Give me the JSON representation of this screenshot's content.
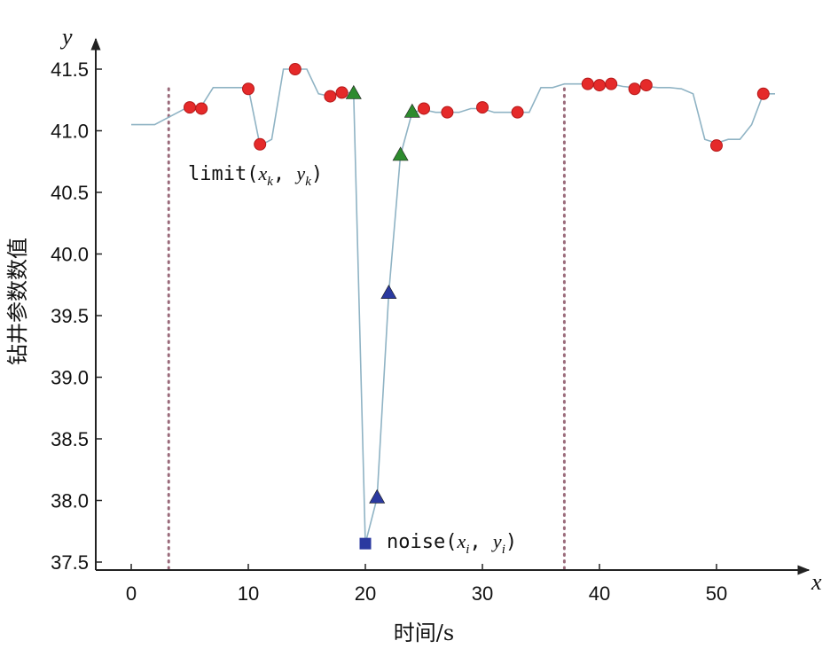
{
  "chart_data": {
    "type": "line",
    "xlabel": "时间/s",
    "ylabel": "钻井参数数值",
    "x_axis_letter": "x",
    "y_axis_letter": "y",
    "xlim": [
      -3,
      58
    ],
    "ylim": [
      37.4,
      41.75
    ],
    "x_ticks": [
      0,
      10,
      20,
      30,
      40,
      50
    ],
    "y_ticks": [
      37.5,
      38.0,
      38.5,
      39.0,
      39.5,
      40.0,
      40.5,
      41.0,
      41.5
    ],
    "y_tick_labels": [
      "37.5",
      "38.0",
      "38.5",
      "39.0",
      "39.5",
      "40.0",
      "40.5",
      "41.0",
      "41.5"
    ],
    "line": {
      "color": "#8fb3c4",
      "x": [
        0,
        2,
        4,
        5,
        6,
        7,
        8,
        9,
        10,
        11,
        12,
        13,
        14,
        15,
        16,
        17,
        18,
        19,
        20,
        21,
        22,
        23,
        24,
        25,
        26,
        27,
        28,
        29,
        30,
        31,
        32,
        33,
        34,
        35,
        36,
        37,
        38,
        39,
        40,
        41,
        42,
        43,
        44,
        45,
        46,
        47,
        48,
        49,
        50,
        51,
        52,
        53,
        54,
        55
      ],
      "y": [
        41.05,
        41.05,
        41.15,
        41.2,
        41.2,
        41.35,
        41.35,
        41.35,
        41.35,
        40.88,
        40.93,
        41.5,
        41.5,
        41.5,
        41.3,
        41.28,
        41.32,
        41.3,
        37.65,
        38.02,
        39.68,
        40.8,
        41.15,
        41.17,
        41.15,
        41.15,
        41.15,
        41.18,
        41.18,
        41.15,
        41.15,
        41.15,
        41.15,
        41.35,
        41.35,
        41.38,
        41.38,
        41.38,
        41.37,
        41.38,
        41.36,
        41.35,
        41.36,
        41.35,
        41.35,
        41.34,
        41.3,
        40.93,
        40.9,
        40.93,
        40.93,
        41.05,
        41.3,
        41.3
      ]
    },
    "series": [
      {
        "marker": "circle",
        "color": "#e52a2a",
        "points": [
          [
            5,
            41.19
          ],
          [
            6,
            41.18
          ],
          [
            10,
            41.34
          ],
          [
            11,
            40.89
          ],
          [
            14,
            41.5
          ],
          [
            17,
            41.28
          ],
          [
            18,
            41.31
          ],
          [
            25,
            41.18
          ],
          [
            27,
            41.15
          ],
          [
            30,
            41.19
          ],
          [
            33,
            41.15
          ],
          [
            39,
            41.38
          ],
          [
            40,
            41.37
          ],
          [
            41,
            41.38
          ],
          [
            43,
            41.34
          ],
          [
            44,
            41.37
          ],
          [
            50,
            40.88
          ],
          [
            54,
            41.3
          ]
        ]
      },
      {
        "marker": "triangle",
        "color": "#2e8b2e",
        "points": [
          [
            19,
            41.3
          ],
          [
            23,
            40.8
          ],
          [
            24,
            41.15
          ]
        ]
      },
      {
        "marker": "triangle",
        "color": "#2b3aa0",
        "points": [
          [
            21,
            38.02
          ],
          [
            22,
            39.68
          ]
        ]
      },
      {
        "marker": "square",
        "color": "#2b3aa0",
        "points": [
          [
            20,
            37.65
          ]
        ]
      }
    ],
    "vlines": [
      {
        "x": 3.2,
        "style": "dotted",
        "color": "#9a6a7a"
      },
      {
        "x": 37,
        "style": "dotted",
        "color": "#9a6a7a"
      }
    ],
    "annotations": {
      "limit": {
        "word": "limit",
        "open": "(",
        "v1": "x",
        "s1": "k",
        "sep": ", ",
        "v2": "y",
        "s2": "k",
        "close": ")"
      },
      "noise": {
        "word": "noise",
        "open": "(",
        "v1": "x",
        "s1": "i",
        "sep": ", ",
        "v2": "y",
        "s2": "i",
        "close": ")"
      }
    }
  }
}
